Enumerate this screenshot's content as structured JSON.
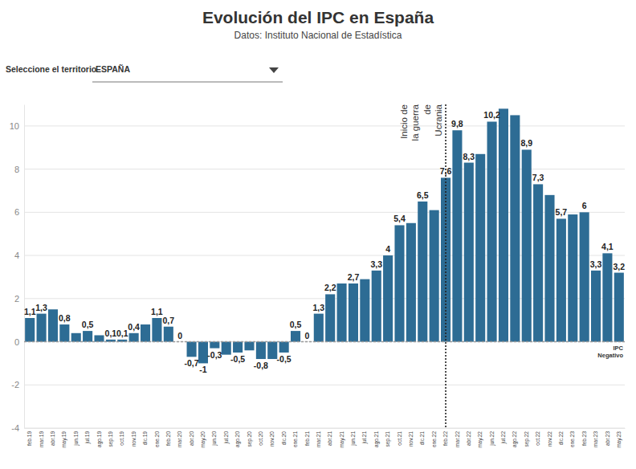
{
  "selector": {
    "label": "Seleccione el territorio",
    "value": "ESPAÑA"
  },
  "chart_data": {
    "type": "bar",
    "title": "Evolución del IPC en España",
    "subtitle": "Datos: Instituto Nacional de Estadística",
    "categories": [
      "feb.19",
      "mar.19",
      "abr.19",
      "may.19",
      "jun.19",
      "jul.19",
      "ago.19",
      "sep.19",
      "oct.19",
      "nov.19",
      "dic.19",
      "ene.20",
      "feb.20",
      "mar.20",
      "abr.20",
      "may.20",
      "jun.20",
      "jul.20",
      "ago.20",
      "sep.20",
      "oct.20",
      "nov.20",
      "dic.20",
      "ene.21",
      "feb.21",
      "mar.21",
      "abr.21",
      "may.21",
      "jun.21",
      "jul.21",
      "ago.21",
      "sep.21",
      "oct.21",
      "nov.21",
      "dic.21",
      "ene.22",
      "feb.22",
      "mar.22",
      "abr.22",
      "may.22",
      "jun.22",
      "jul.22",
      "ago.22",
      "sep.22",
      "oct.22",
      "nov.22",
      "dic.22",
      "ene.23",
      "feb.23",
      "mar.23",
      "abr.23",
      "may.23"
    ],
    "values": [
      1.1,
      1.3,
      1.5,
      0.8,
      0.4,
      0.5,
      0.3,
      0.1,
      0.1,
      0.4,
      0.8,
      1.1,
      0.7,
      0,
      -0.7,
      -1,
      -0.3,
      -0.6,
      -0.5,
      -0.4,
      -0.8,
      -0.8,
      -0.5,
      0.5,
      0,
      1.3,
      2.2,
      2.7,
      2.7,
      2.9,
      3.3,
      4,
      5.4,
      5.5,
      6.5,
      6.1,
      7.6,
      9.8,
      8.3,
      8.7,
      10.2,
      10.8,
      10.5,
      8.9,
      7.3,
      6.8,
      5.7,
      5.9,
      6,
      3.3,
      4.1,
      3.2
    ],
    "value_labels": [
      "1,1",
      "1,3",
      null,
      "0,8",
      null,
      "0,5",
      null,
      "0,1",
      "0,1",
      "0,4",
      null,
      "1,1",
      "0,7",
      "0",
      "-0,7",
      "-1",
      "-0,3",
      null,
      "-0,5",
      null,
      "-0,8",
      null,
      "-0,5",
      "0,5",
      "0",
      "1,3",
      "2,2",
      null,
      "2,7",
      null,
      "3,3",
      "4",
      "5,4",
      null,
      "6,5",
      null,
      "7,6",
      "9,8",
      "8,3",
      null,
      "10,2",
      null,
      null,
      "8,9",
      "7,3",
      null,
      "5,7",
      null,
      "6",
      "3,3",
      "4,1",
      "3,2"
    ],
    "color": "#2d6c94",
    "ylim": [
      -4,
      11
    ],
    "yticks": [
      -4,
      -2,
      0,
      2,
      4,
      6,
      8,
      10
    ],
    "grid": true,
    "data_labels": true,
    "annotations": [
      {
        "text": [
          "Inicio de",
          "la guerra",
          "de",
          "Ucrania"
        ],
        "x": "feb.22"
      },
      {
        "text": [
          "IPC",
          "Negativo"
        ],
        "y": 0
      }
    ]
  }
}
